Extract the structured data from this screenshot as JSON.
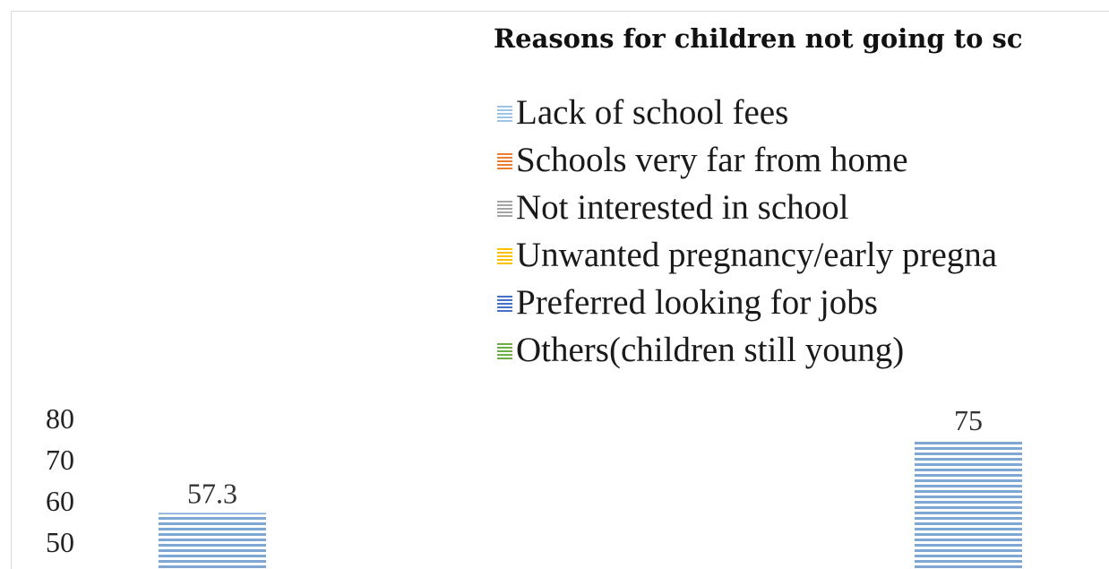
{
  "chart_data": {
    "type": "bar",
    "title": "Reasons for children  not going to sc",
    "legend_position": "top",
    "legend_entries": [
      {
        "name": "Lack of school fees",
        "color": "#9dc3e6"
      },
      {
        "name": "Schools very far from home",
        "color": "#ed7d31"
      },
      {
        "name": "Not interested in school",
        "color": "#a5a5a5"
      },
      {
        "name": "Unwanted pregnancy/early pregna",
        "color": "#ffc000"
      },
      {
        "name": "Preferred looking for jobs",
        "color": "#4472c4"
      },
      {
        "name": "Others(children still young)",
        "color": "#70ad47"
      }
    ],
    "y_ticks": [
      "80",
      "70",
      "60",
      "50"
    ],
    "ylim_visible": [
      50,
      80
    ],
    "grid": false,
    "bars": [
      {
        "series": "Lack of school fees",
        "value": 57.3,
        "label": "57.3",
        "color": "#9dc3e6"
      },
      {
        "series": "Lack of school fees",
        "value": 75,
        "label": "75",
        "color": "#9dc3e6"
      }
    ]
  }
}
